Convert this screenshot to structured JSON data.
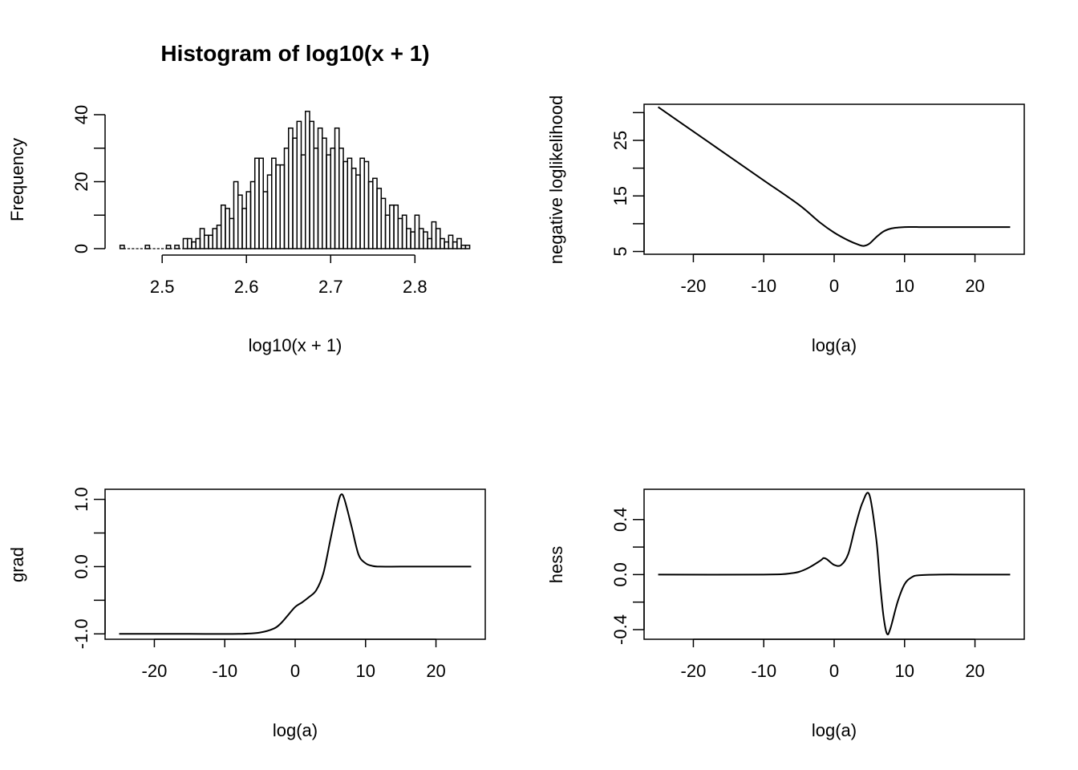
{
  "chart_data": [
    {
      "type": "bar",
      "panel": "histogram",
      "title": "Histogram of log10(x + 1)",
      "xlabel": "log10(x + 1)",
      "ylabel": "Frequency",
      "xlim": [
        2.45,
        2.87
      ],
      "ylim": [
        0,
        40
      ],
      "bin_start": 2.45,
      "bin_width": 0.005,
      "values": [
        1,
        0,
        0,
        0,
        0,
        0,
        1,
        0,
        0,
        0,
        0,
        1,
        0,
        1,
        0,
        3,
        3,
        2,
        3,
        6,
        4,
        4,
        6,
        7,
        13,
        12,
        9,
        20,
        16,
        12,
        17,
        20,
        27,
        27,
        17,
        22,
        27,
        25,
        25,
        30,
        36,
        33,
        38,
        28,
        41,
        38,
        30,
        36,
        33,
        28,
        30,
        36,
        30,
        26,
        27,
        24,
        22,
        27,
        26,
        20,
        21,
        18,
        15,
        10,
        13,
        13,
        9,
        10,
        6,
        5,
        10,
        6,
        5,
        3,
        8,
        6,
        3,
        2,
        4,
        2,
        3,
        1,
        1
      ],
      "x_ticks": [
        "2.5",
        "2.6",
        "2.7",
        "2.8"
      ],
      "y_ticks": [
        "0",
        "20",
        "40"
      ]
    },
    {
      "type": "line",
      "panel": "negloglik",
      "xlabel": "log(a)",
      "ylabel": "negative loglikelihood",
      "xlim": [
        -27,
        27
      ],
      "ylim": [
        4.5,
        31.5
      ],
      "x_ticks": [
        "-20",
        "-10",
        "0",
        "10",
        "20"
      ],
      "y_ticks": [
        "5",
        "15",
        "25"
      ],
      "series": [
        {
          "x": [
            -25,
            -20,
            -15,
            -10,
            -5,
            -2,
            0,
            2,
            3.5,
            4.2,
            5,
            6,
            7,
            8,
            9,
            10,
            12,
            15,
            20,
            25
          ],
          "y": [
            31,
            26.6,
            22.2,
            17.8,
            13.4,
            10.2,
            8.4,
            7,
            6.2,
            6,
            6.4,
            7.6,
            8.6,
            9.1,
            9.3,
            9.4,
            9.4,
            9.4,
            9.4,
            9.4
          ]
        }
      ]
    },
    {
      "type": "line",
      "panel": "grad",
      "xlabel": "log(a)",
      "ylabel": "grad",
      "xlim": [
        -27,
        27
      ],
      "ylim": [
        -1.08,
        1.15
      ],
      "x_ticks": [
        "-20",
        "-10",
        "0",
        "10",
        "20"
      ],
      "y_ticks": [
        "-1.0",
        "0.0",
        "1.0"
      ],
      "series": [
        {
          "x": [
            -25,
            -15,
            -8,
            -5,
            -3,
            -2,
            -1,
            0,
            1,
            2,
            3,
            4,
            5,
            6,
            6.5,
            7,
            8,
            9,
            10,
            11,
            12,
            15,
            20,
            25
          ],
          "y": [
            -1,
            -1,
            -1,
            -0.98,
            -0.92,
            -0.84,
            -0.72,
            -0.6,
            -0.53,
            -0.45,
            -0.35,
            -0.1,
            0.4,
            0.9,
            1.07,
            1.0,
            0.6,
            0.18,
            0.05,
            0.01,
            0,
            0,
            0,
            0
          ]
        }
      ]
    },
    {
      "type": "line",
      "panel": "hess",
      "xlabel": "log(a)",
      "ylabel": "hess",
      "xlim": [
        -27,
        27
      ],
      "ylim": [
        -0.47,
        0.62
      ],
      "x_ticks": [
        "-20",
        "-10",
        "0",
        "10",
        "20"
      ],
      "y_ticks": [
        "-0.4",
        "0.0",
        "0.4"
      ],
      "series": [
        {
          "x": [
            -25,
            -10,
            -6,
            -4,
            -2,
            -1.5,
            -1,
            0,
            1,
            2,
            3,
            4,
            5,
            6,
            6.5,
            7,
            7.5,
            8,
            9,
            10,
            11,
            12,
            15,
            20,
            25
          ],
          "y": [
            0,
            0,
            0.01,
            0.04,
            0.1,
            0.12,
            0.11,
            0.07,
            0.07,
            0.15,
            0.35,
            0.52,
            0.58,
            0.25,
            -0.05,
            -0.3,
            -0.43,
            -0.39,
            -0.2,
            -0.07,
            -0.02,
            -0.005,
            0,
            0,
            0
          ]
        }
      ]
    }
  ]
}
